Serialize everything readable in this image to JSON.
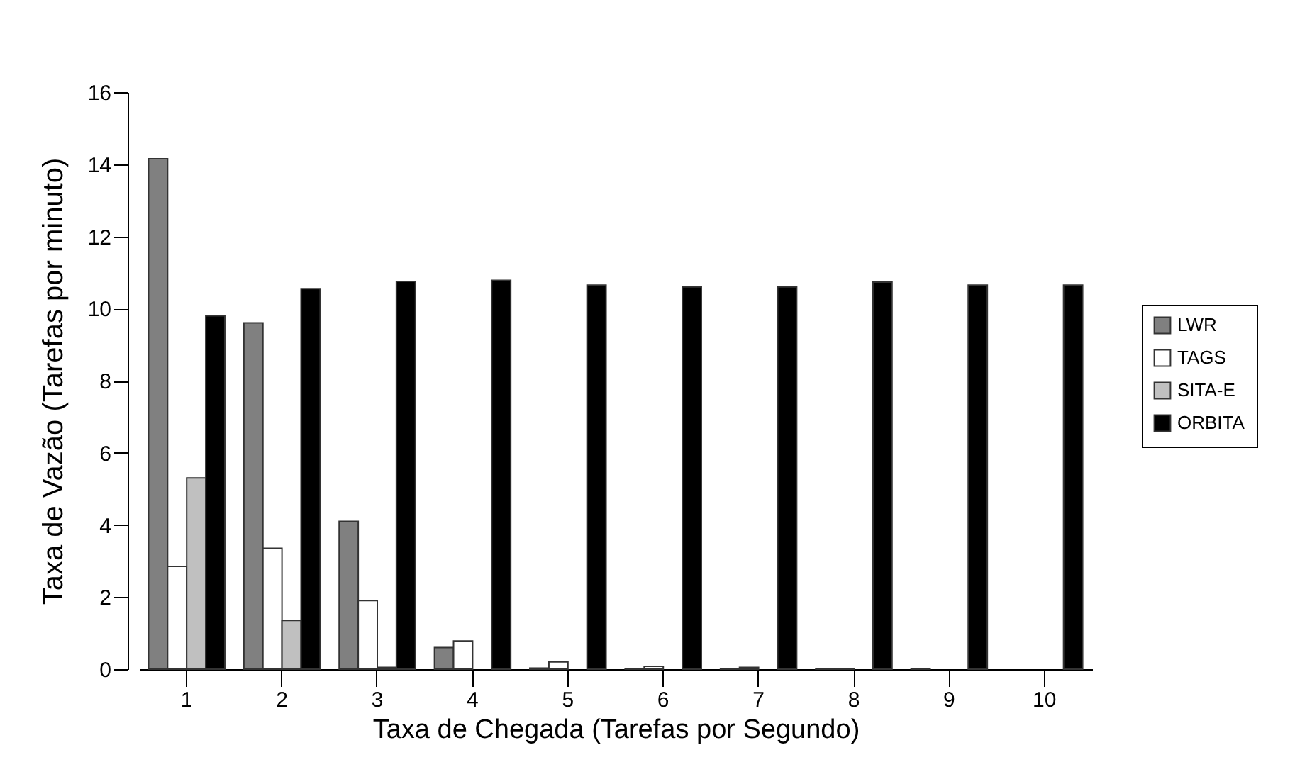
{
  "chart_data": {
    "type": "bar",
    "xlabel": "Taxa de Chegada (Tarefas por Segundo)",
    "ylabel": "Taxa de Vazão (Tarefas por minuto)",
    "categories": [
      "1",
      "2",
      "3",
      "4",
      "5",
      "6",
      "7",
      "8",
      "9",
      "10"
    ],
    "series": [
      {
        "name": "LWR",
        "color": "#808080",
        "values": [
          14.15,
          9.6,
          4.1,
          0.6,
          0.03,
          0.01,
          0.01,
          0.01,
          0.01,
          0
        ]
      },
      {
        "name": "TAGS",
        "color": "#ffffff",
        "values": [
          2.85,
          3.35,
          1.9,
          0.78,
          0.2,
          0.08,
          0.05,
          0.02,
          0,
          0
        ]
      },
      {
        "name": "SITA-E",
        "color": "#c0c0c0",
        "values": [
          5.3,
          1.35,
          0.05,
          0,
          0,
          0,
          0,
          0,
          0,
          0
        ]
      },
      {
        "name": "ORBITA",
        "color": "#000000",
        "values": [
          9.8,
          10.55,
          10.75,
          10.78,
          10.65,
          10.6,
          10.6,
          10.73,
          10.65,
          10.65
        ]
      }
    ],
    "ylim": [
      0,
      16
    ],
    "yticks": [
      0,
      2,
      4,
      6,
      8,
      10,
      12,
      14,
      16
    ],
    "grid": false,
    "legend": "right"
  }
}
